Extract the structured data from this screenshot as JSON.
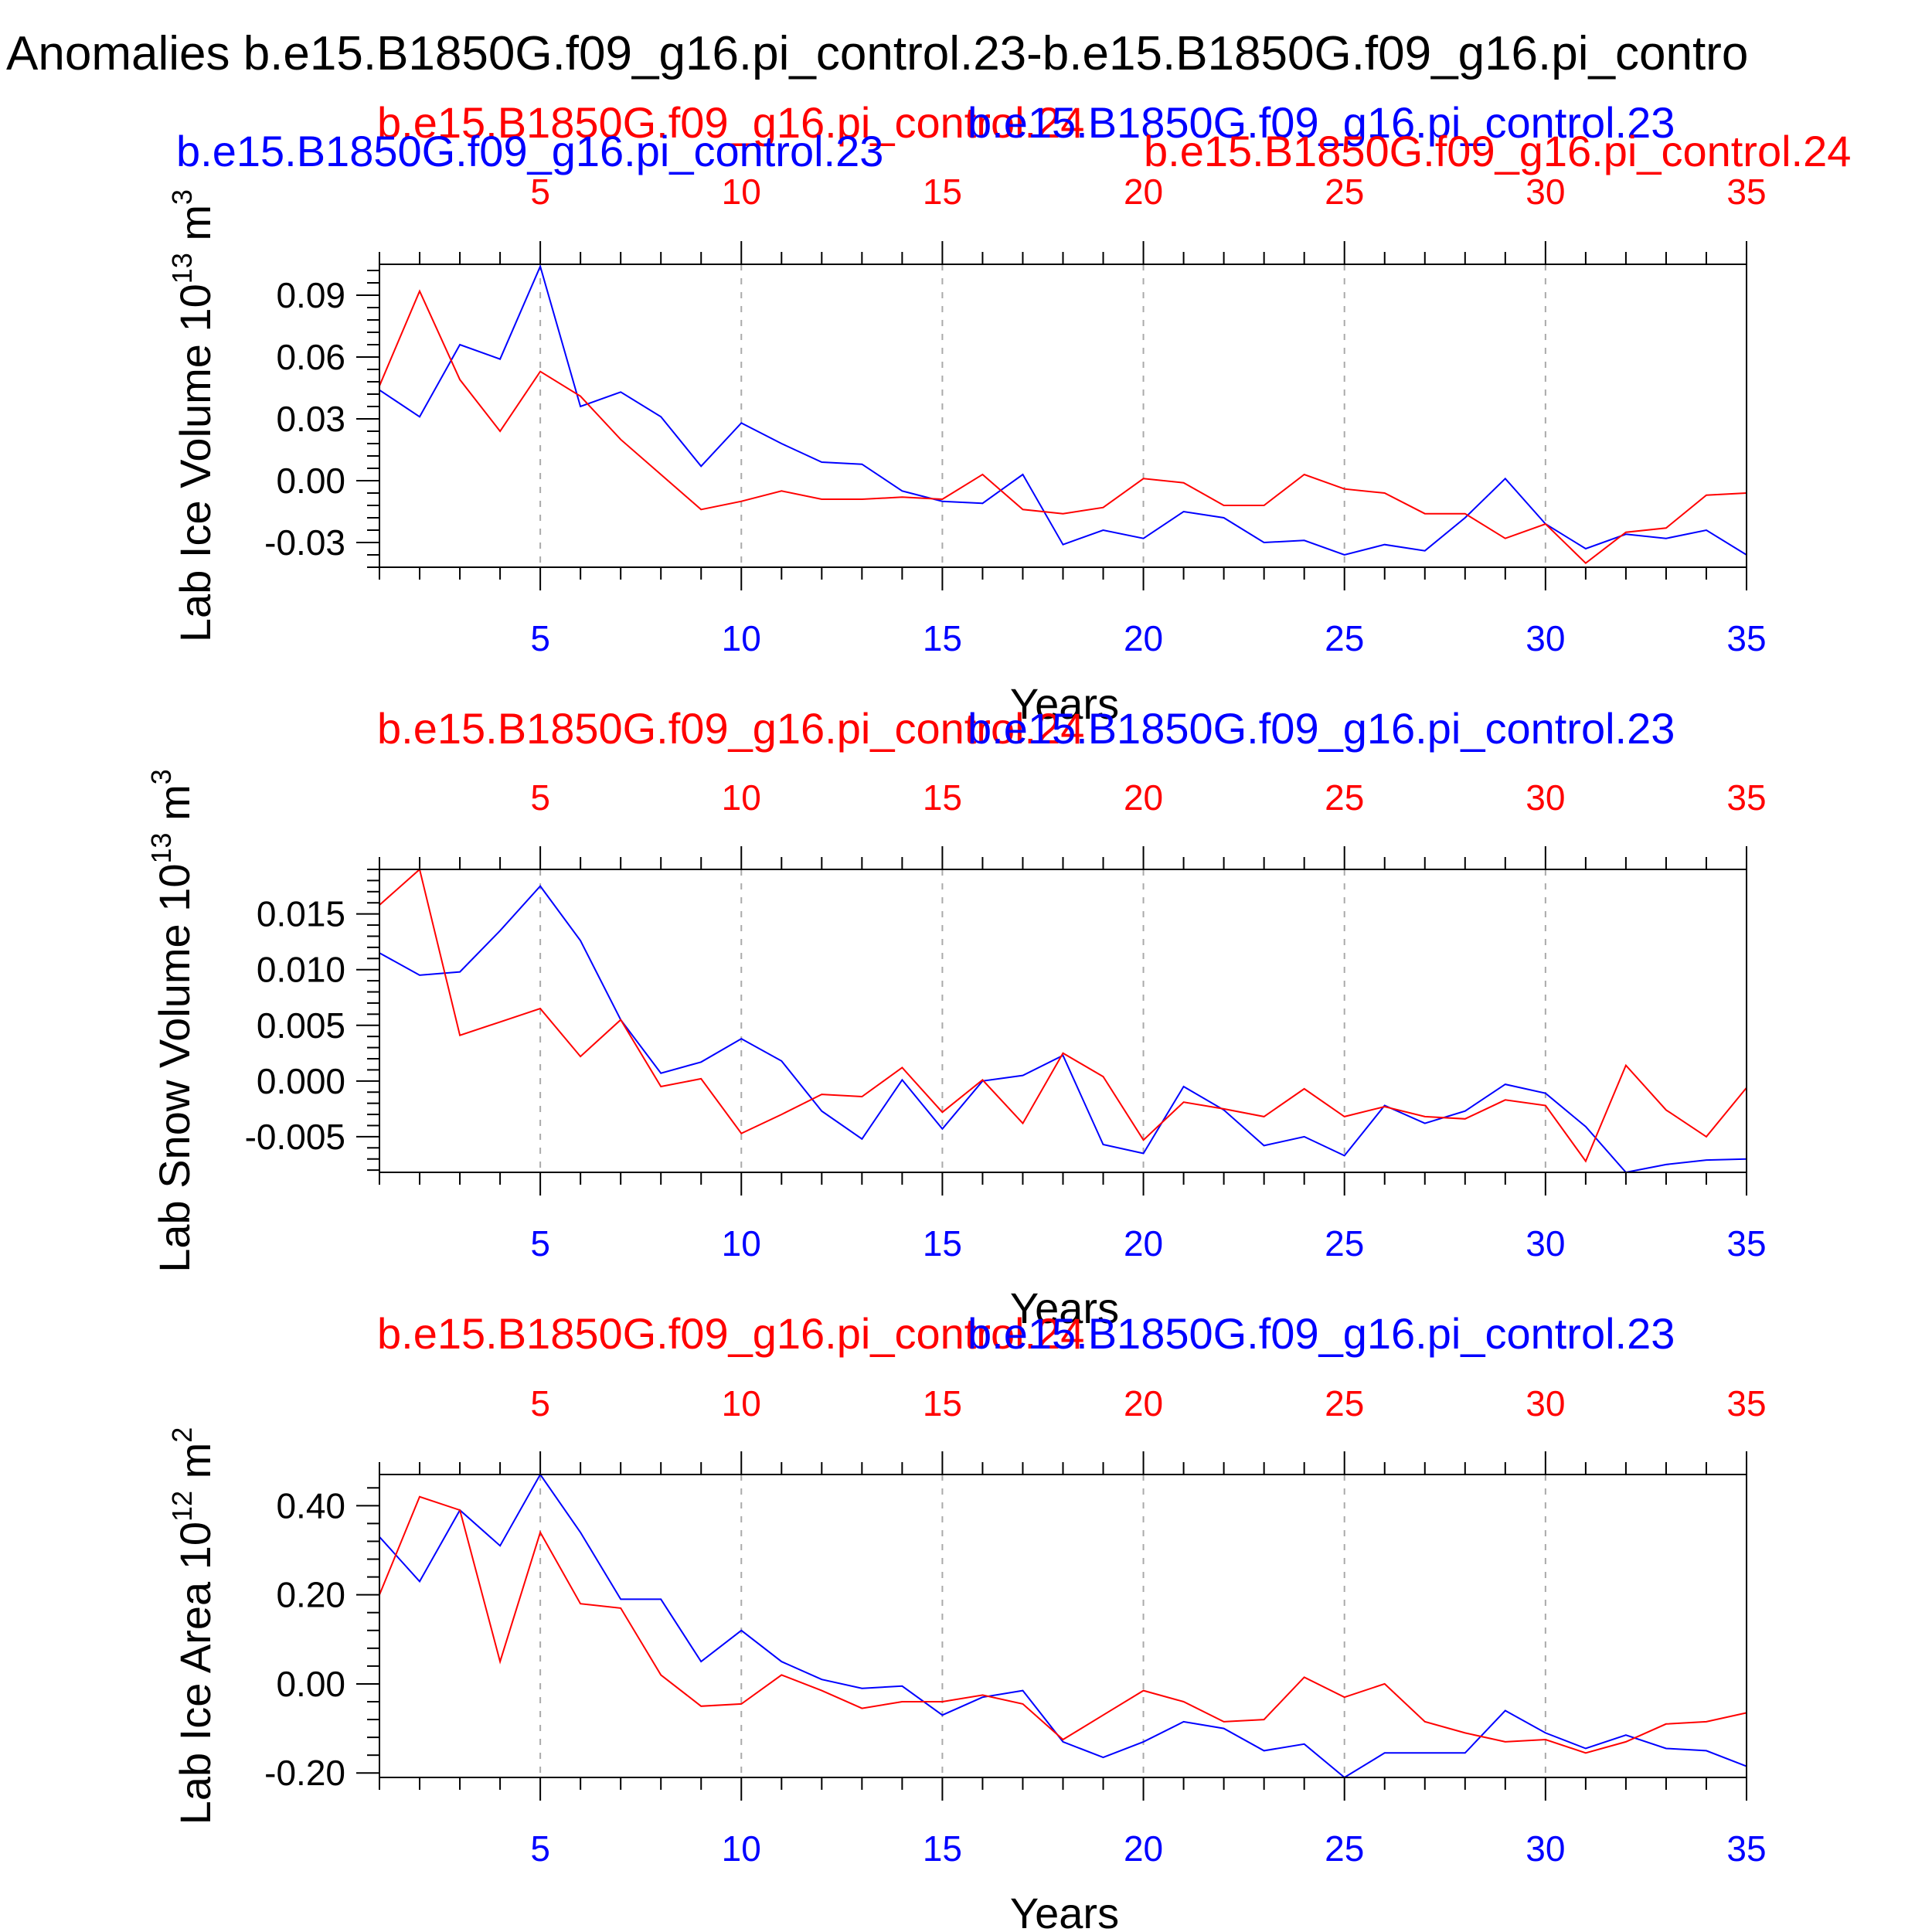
{
  "title": "Anomalies b.e15.B1850G.f09_g16.pi_control.23-b.e15.B1850G.f09_g16.pi_contro",
  "colors": {
    "series_a": "#0000ff",
    "series_b": "#ff0000",
    "grid": "#aaaaaa",
    "axis": "#000000"
  },
  "chart_data": [
    {
      "type": "line",
      "ylabel": {
        "main": "Lab Ice Volume 10",
        "sup": "13",
        "unit": " m",
        "unit_sup": "3"
      },
      "xlabel": "Years",
      "series_labels": [
        {
          "text": "b.e15.B1850G.f09_g16.pi_control.24",
          "color": "#ff0000"
        },
        {
          "text": "b.e15.B1850G.f09_g16.pi_control.23",
          "color": "#0000ff"
        },
        {
          "text": "b.e15.B1850G.f09_g16.pi_control.23",
          "color": "#0000ff"
        },
        {
          "text": "b.e15.B1850G.f09_g16.pi_control.24",
          "color": "#ff0000"
        }
      ],
      "xlim": [
        1,
        35
      ],
      "ylim": [
        -0.042,
        0.105
      ],
      "yticks": [
        -0.03,
        0.0,
        0.03,
        0.06,
        0.09
      ],
      "ytick_labels": [
        "-0.03",
        "0.00",
        "0.03",
        "0.06",
        "0.09"
      ],
      "xticks": [
        5,
        10,
        15,
        20,
        25,
        30,
        35
      ],
      "xtick_labels": [
        "5",
        "10",
        "15",
        "20",
        "25",
        "30",
        "35"
      ],
      "grid": "vertical dashed",
      "x": [
        1,
        2,
        3,
        4,
        5,
        6,
        7,
        8,
        9,
        10,
        11,
        12,
        13,
        14,
        15,
        16,
        17,
        18,
        19,
        20,
        21,
        22,
        23,
        24,
        25,
        26,
        27,
        28,
        29,
        30,
        31,
        32,
        33,
        34,
        35
      ],
      "series": [
        {
          "color": "#0000ff",
          "values": [
            0.044,
            0.031,
            0.066,
            0.059,
            0.104,
            0.036,
            0.043,
            0.031,
            0.007,
            0.028,
            0.018,
            0.009,
            0.008,
            -0.005,
            -0.01,
            -0.011,
            0.003,
            -0.031,
            -0.024,
            -0.028,
            -0.015,
            -0.018,
            -0.03,
            -0.029,
            -0.036,
            -0.031,
            -0.034,
            -0.018,
            0.001,
            -0.021,
            -0.033,
            -0.026,
            -0.028,
            -0.024,
            -0.036
          ]
        },
        {
          "color": "#ff0000",
          "values": [
            0.046,
            0.092,
            0.049,
            0.024,
            0.053,
            0.041,
            0.02,
            0.003,
            -0.014,
            -0.01,
            -0.005,
            -0.009,
            -0.009,
            -0.008,
            -0.009,
            0.003,
            -0.014,
            -0.016,
            -0.013,
            0.001,
            -0.001,
            -0.012,
            -0.012,
            0.003,
            -0.004,
            -0.006,
            -0.016,
            -0.016,
            -0.028,
            -0.021,
            -0.04,
            -0.025,
            -0.023,
            -0.007,
            -0.006
          ]
        }
      ]
    },
    {
      "type": "line",
      "ylabel": {
        "main": "Lab Snow Volume 10",
        "sup": "13",
        "unit": " m",
        "unit_sup": "3"
      },
      "xlabel": "Years",
      "series_labels": [
        {
          "text": "b.e15.B1850G.f09_g16.pi_control.24",
          "color": "#ff0000"
        },
        {
          "text": "b.e15.B1850G.f09_g16.pi_control.23",
          "color": "#0000ff"
        }
      ],
      "xlim": [
        1,
        35
      ],
      "ylim": [
        -0.0082,
        0.019
      ],
      "yticks": [
        -0.005,
        0.0,
        0.005,
        0.01,
        0.015
      ],
      "ytick_labels": [
        "-0.005",
        "0.000",
        "0.005",
        "0.010",
        "0.015"
      ],
      "xticks": [
        5,
        10,
        15,
        20,
        25,
        30,
        35
      ],
      "xtick_labels": [
        "5",
        "10",
        "15",
        "20",
        "25",
        "30",
        "35"
      ],
      "grid": "vertical dashed",
      "x": [
        1,
        2,
        3,
        4,
        5,
        6,
        7,
        8,
        9,
        10,
        11,
        12,
        13,
        14,
        15,
        16,
        17,
        18,
        19,
        20,
        21,
        22,
        23,
        24,
        25,
        26,
        27,
        28,
        29,
        30,
        31,
        32,
        33,
        34,
        35
      ],
      "series": [
        {
          "color": "#0000ff",
          "values": [
            0.0115,
            0.0095,
            0.0098,
            0.0135,
            0.0175,
            0.0126,
            0.0055,
            0.0007,
            0.0017,
            0.0038,
            0.0018,
            -0.0027,
            -0.0052,
            0.0001,
            -0.0043,
            0.0,
            0.0005,
            0.0023,
            -0.0057,
            -0.0065,
            -0.0005,
            -0.0026,
            -0.0058,
            -0.005,
            -0.0067,
            -0.0022,
            -0.0038,
            -0.0027,
            -0.0003,
            -0.0011,
            -0.0041,
            -0.0082,
            -0.0075,
            -0.0071,
            -0.007
          ]
        },
        {
          "color": "#ff0000",
          "values": [
            0.0158,
            0.019,
            0.0041,
            0.0053,
            0.0065,
            0.0022,
            0.0055,
            -0.0005,
            0.0002,
            -0.0047,
            -0.003,
            -0.0012,
            -0.0014,
            0.0012,
            -0.0028,
            0.0001,
            -0.0038,
            0.0025,
            0.0004,
            -0.0053,
            -0.0019,
            -0.0025,
            -0.0032,
            -0.0007,
            -0.0032,
            -0.0023,
            -0.0032,
            -0.0034,
            -0.0017,
            -0.0022,
            -0.0072,
            0.0014,
            -0.0026,
            -0.005,
            -0.0006
          ]
        }
      ]
    },
    {
      "type": "line",
      "ylabel": {
        "main": "Lab Ice Area 10",
        "sup": "12",
        "unit": " m",
        "unit_sup": "2"
      },
      "xlabel": "Years",
      "series_labels": [
        {
          "text": "b.e15.B1850G.f09_g16.pi_control.24",
          "color": "#ff0000"
        },
        {
          "text": "b.e15.B1850G.f09_g16.pi_control.23",
          "color": "#0000ff"
        }
      ],
      "xlim": [
        1,
        35
      ],
      "ylim": [
        -0.21,
        0.47
      ],
      "yticks": [
        -0.2,
        0.0,
        0.2,
        0.4
      ],
      "ytick_labels": [
        "-0.20",
        "0.00",
        "0.20",
        "0.40"
      ],
      "xticks": [
        5,
        10,
        15,
        20,
        25,
        30,
        35
      ],
      "xtick_labels": [
        "5",
        "10",
        "15",
        "20",
        "25",
        "30",
        "35"
      ],
      "grid": "vertical dashed",
      "x": [
        1,
        2,
        3,
        4,
        5,
        6,
        7,
        8,
        9,
        10,
        11,
        12,
        13,
        14,
        15,
        16,
        17,
        18,
        19,
        20,
        21,
        22,
        23,
        24,
        25,
        26,
        27,
        28,
        29,
        30,
        31,
        32,
        33,
        34,
        35
      ],
      "series": [
        {
          "color": "#0000ff",
          "values": [
            0.33,
            0.23,
            0.39,
            0.31,
            0.47,
            0.34,
            0.19,
            0.19,
            0.05,
            0.12,
            0.05,
            0.01,
            -0.01,
            -0.005,
            -0.07,
            -0.03,
            -0.015,
            -0.13,
            -0.165,
            -0.13,
            -0.085,
            -0.1,
            -0.15,
            -0.135,
            -0.21,
            -0.155,
            -0.155,
            -0.155,
            -0.06,
            -0.11,
            -0.145,
            -0.115,
            -0.145,
            -0.15,
            -0.185
          ]
        },
        {
          "color": "#ff0000",
          "values": [
            0.2,
            0.42,
            0.39,
            0.05,
            0.34,
            0.18,
            0.17,
            0.02,
            -0.05,
            -0.045,
            0.02,
            -0.015,
            -0.055,
            -0.04,
            -0.04,
            -0.025,
            -0.045,
            -0.125,
            -0.07,
            -0.015,
            -0.04,
            -0.085,
            -0.08,
            0.015,
            -0.03,
            0.0,
            -0.085,
            -0.11,
            -0.13,
            -0.125,
            -0.155,
            -0.13,
            -0.09,
            -0.085,
            -0.065
          ]
        }
      ]
    }
  ]
}
